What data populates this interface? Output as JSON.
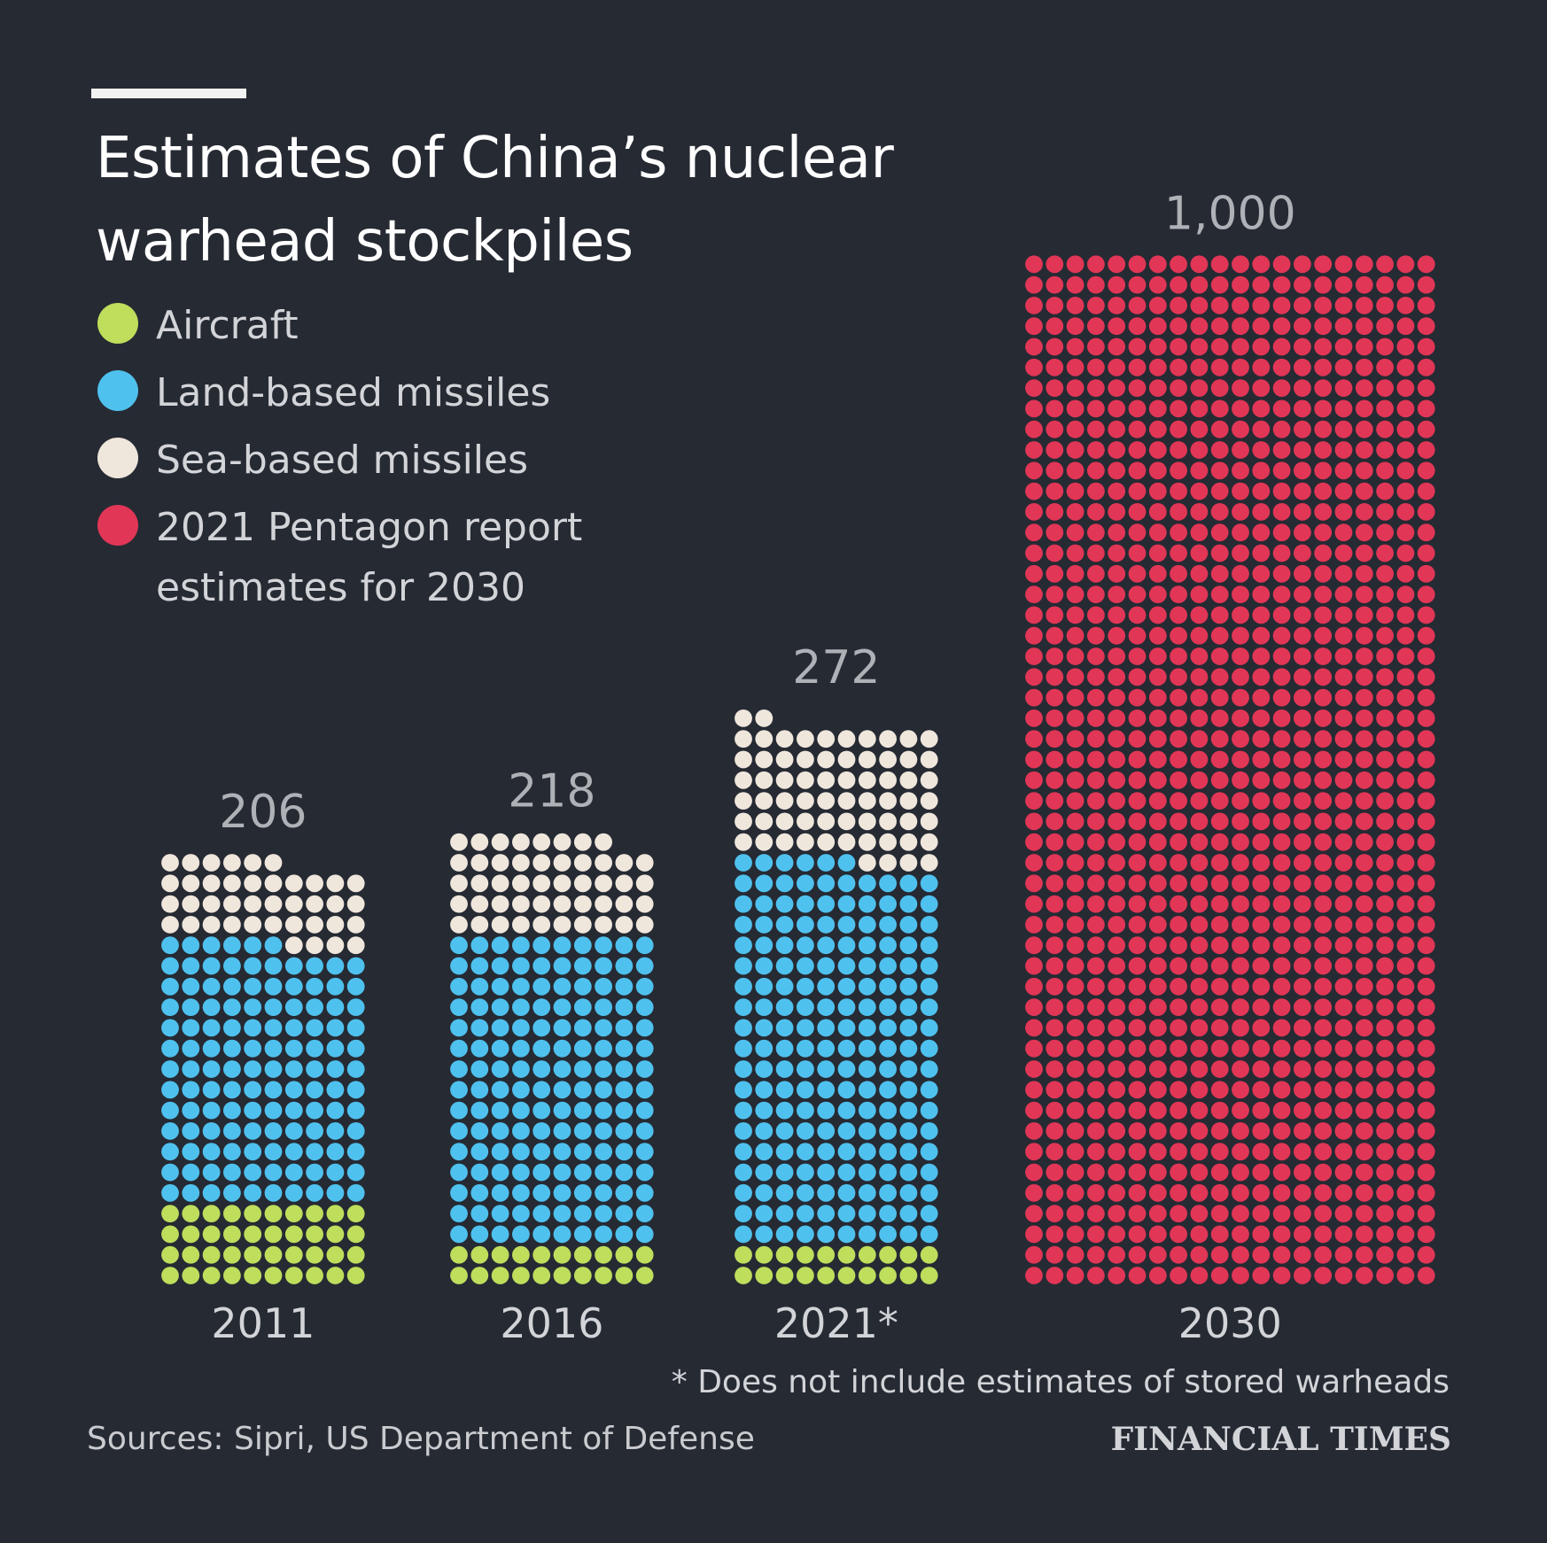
{
  "title": "Estimates of China’s nuclear warhead stockpiles",
  "legend": [
    {
      "label": "Aircraft",
      "color": "#bede5c"
    },
    {
      "label": "Land-based missiles",
      "color": "#4fc1ee"
    },
    {
      "label": "Sea-based missiles",
      "color": "#efe6dc"
    },
    {
      "label": "2021 Pentagon report estimates for 2030",
      "color": "#e23656"
    }
  ],
  "footnote": "* Does not include estimates of stored warheads",
  "sources": "Sources: Sipri, US Department of Defense",
  "brand": "FINANCIAL TIMES",
  "chart_data": {
    "type": "bar",
    "categories": [
      "2011",
      "2016",
      "2021*",
      "2030"
    ],
    "totals": [
      "206",
      "218",
      "272",
      "1,000"
    ],
    "series": [
      {
        "name": "Aircraft",
        "values": [
          40,
          20,
          20,
          0
        ]
      },
      {
        "name": "Land-based missiles",
        "values": [
          126,
          150,
          186,
          0
        ]
      },
      {
        "name": "Sea-based missiles",
        "values": [
          40,
          48,
          66,
          0
        ]
      },
      {
        "name": "2021 Pentagon report estimates for 2030",
        "values": [
          0,
          0,
          0,
          1000
        ]
      }
    ],
    "columns_per_bar": [
      10,
      10,
      10,
      20
    ],
    "legend_position": "top-left",
    "grid": false
  }
}
